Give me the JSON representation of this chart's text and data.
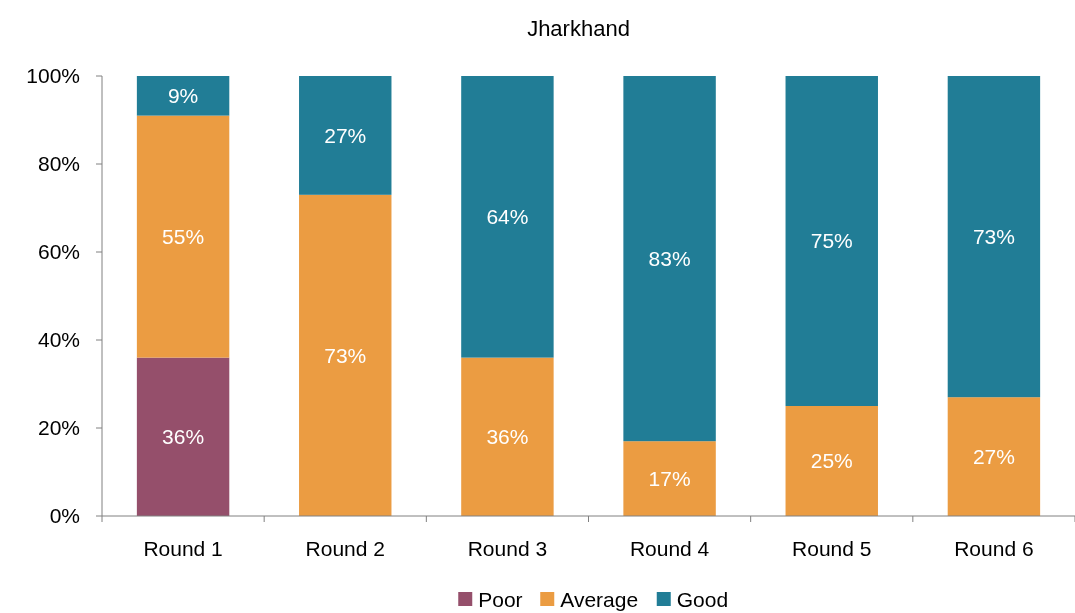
{
  "chart_data": {
    "type": "bar",
    "title": "Jharkhand",
    "stacked": true,
    "categories": [
      "Round 1",
      "Round 2",
      "Round 3",
      "Round 4",
      "Round 5",
      "Round 6"
    ],
    "series": [
      {
        "name": "Poor",
        "color": "#954f6b",
        "values": [
          36,
          0,
          0,
          0,
          0,
          0
        ],
        "value_labels": [
          "36%",
          null,
          null,
          null,
          null,
          null
        ]
      },
      {
        "name": "Average",
        "color": "#eb9c42",
        "values": [
          55,
          73,
          36,
          17,
          25,
          27
        ],
        "value_labels": [
          "55%",
          "73%",
          "36%",
          "17%",
          "25%",
          "27%"
        ]
      },
      {
        "name": "Good",
        "color": "#217d96",
        "values": [
          9,
          27,
          64,
          83,
          75,
          73
        ],
        "value_labels": [
          "9%",
          "27%",
          "64%",
          "83%",
          "75%",
          "73%"
        ]
      }
    ],
    "ylim": [
      0,
      100
    ],
    "yticks": [
      {
        "value": 0,
        "label": "0%"
      },
      {
        "value": 20,
        "label": "20%"
      },
      {
        "value": 40,
        "label": "40%"
      },
      {
        "value": 60,
        "label": "60%"
      },
      {
        "value": 80,
        "label": "80%"
      },
      {
        "value": 100,
        "label": "100%"
      }
    ],
    "legend": "bottom",
    "grid": false
  }
}
